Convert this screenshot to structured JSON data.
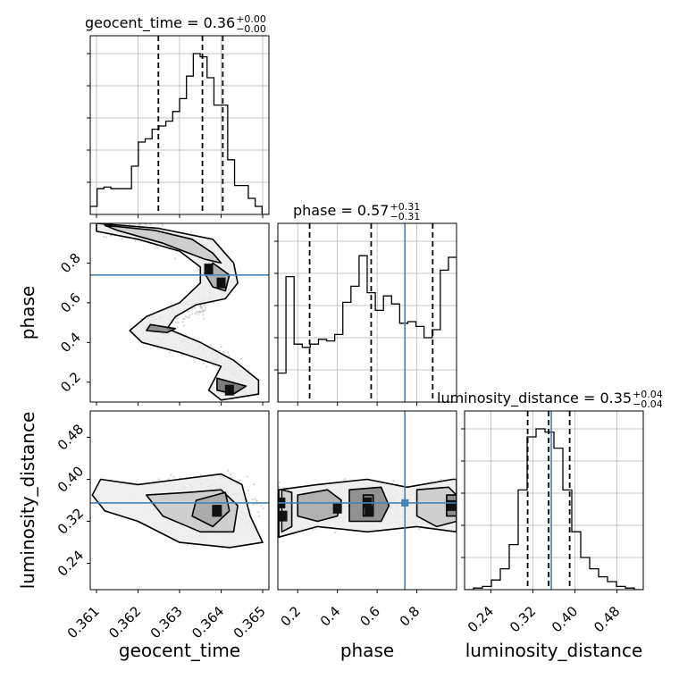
{
  "chart_data": {
    "type": "corner",
    "parameters": [
      "geocent_time",
      "phase",
      "luminosity_distance"
    ],
    "truths": {
      "geocent_time": null,
      "phase": 0.74,
      "luminosity_distance": 0.355
    },
    "colors": {
      "truth": "#4682b4",
      "hist": "#000000",
      "grid": "#b0b0b0",
      "sample": "#888888"
    },
    "grid": true,
    "diagonal": [
      {
        "param": "geocent_time",
        "title_main": "geocent_time = 0.36",
        "title_sup": "+0.00",
        "title_sub": "−0.00",
        "range": [
          0.36085,
          0.36515
        ],
        "xticks": [
          "0.361",
          "0.362",
          "0.363",
          "0.364",
          "0.365"
        ],
        "xtick_values": [
          0.361,
          0.362,
          0.363,
          0.364,
          0.365
        ],
        "quantiles": [
          0.36249,
          0.36355,
          0.36404
        ],
        "heights": [
          0.05,
          0.16,
          0.17,
          0.16,
          0.16,
          0.16,
          0.3,
          0.45,
          0.47,
          0.53,
          0.55,
          0.58,
          0.64,
          0.72,
          0.86,
          1.0,
          0.98,
          0.85,
          0.68,
          0.68,
          0.34,
          0.18,
          0.18,
          0.1,
          0.05,
          0.0
        ]
      },
      {
        "param": "phase",
        "title_main": "phase = 0.57",
        "title_sup": "+0.31",
        "title_sub": "−0.31",
        "range": [
          0.1,
          1.0
        ],
        "xticks": [
          "0.2",
          "0.4",
          "0.6",
          "0.8"
        ],
        "xtick_values": [
          0.2,
          0.4,
          0.6,
          0.8
        ],
        "quantiles": [
          0.26,
          0.57,
          0.88
        ],
        "heights": [
          0.18,
          0.78,
          0.36,
          0.34,
          0.36,
          0.39,
          0.38,
          0.42,
          0.62,
          0.72,
          0.91,
          0.68,
          0.57,
          0.66,
          0.61,
          0.49,
          0.5,
          0.47,
          0.4,
          0.45,
          0.82,
          0.9
        ]
      },
      {
        "param": "luminosity_distance",
        "title_main": "luminosity_distance = 0.35",
        "title_sup": "+0.04",
        "title_sub": "−0.04",
        "range": [
          0.19,
          0.53
        ],
        "xticks": [
          "0.24",
          "0.32",
          "0.40",
          "0.48"
        ],
        "xtick_values": [
          0.24,
          0.32,
          0.4,
          0.48
        ],
        "quantiles": [
          0.31,
          0.35,
          0.39
        ],
        "heights": [
          0.0,
          0.01,
          0.02,
          0.06,
          0.13,
          0.28,
          0.62,
          0.95,
          1.0,
          0.98,
          0.88,
          0.62,
          0.36,
          0.2,
          0.13,
          0.08,
          0.05,
          0.02,
          0.01,
          0.0
        ]
      }
    ],
    "off_diagonal": [
      {
        "x_param": "geocent_time",
        "y_param": "phase",
        "xrange": [
          0.36085,
          0.36515
        ],
        "yrange": [
          0.1,
          1.0
        ],
        "yticks": [
          "0.2",
          "0.4",
          "0.6",
          "0.8"
        ],
        "ytick_values": [
          0.2,
          0.4,
          0.6,
          0.8
        ],
        "ylabel": "phase",
        "density_path": [
          [
            0.3612,
            0.98
          ],
          [
            0.3625,
            0.94
          ],
          [
            0.3635,
            0.86
          ],
          [
            0.364,
            0.74
          ],
          [
            0.3635,
            0.58
          ],
          [
            0.3627,
            0.5
          ],
          [
            0.3622,
            0.47
          ],
          [
            0.363,
            0.4
          ],
          [
            0.3638,
            0.33
          ],
          [
            0.3643,
            0.25
          ],
          [
            0.3645,
            0.17
          ]
        ],
        "contours": [
          [
            [
              0.361,
              1.0
            ],
            [
              0.3625,
              0.975
            ],
            [
              0.3638,
              0.92
            ],
            [
              0.3643,
              0.8
            ],
            [
              0.3644,
              0.7
            ],
            [
              0.3641,
              0.62
            ],
            [
              0.3634,
              0.59
            ],
            [
              0.3629,
              0.53
            ],
            [
              0.3627,
              0.47
            ],
            [
              0.3635,
              0.4
            ],
            [
              0.3643,
              0.31
            ],
            [
              0.3649,
              0.21
            ],
            [
              0.3649,
              0.14
            ],
            [
              0.364,
              0.11
            ],
            [
              0.3637,
              0.16
            ],
            [
              0.364,
              0.28
            ],
            [
              0.363,
              0.35
            ],
            [
              0.3621,
              0.4
            ],
            [
              0.3618,
              0.46
            ],
            [
              0.3622,
              0.53
            ],
            [
              0.363,
              0.6
            ],
            [
              0.3635,
              0.7
            ],
            [
              0.3635,
              0.78
            ],
            [
              0.363,
              0.86
            ],
            [
              0.362,
              0.92
            ],
            [
              0.361,
              0.96
            ]
          ],
          [
            [
              0.3612,
              0.99
            ],
            [
              0.3624,
              0.965
            ],
            [
              0.3633,
              0.92
            ],
            [
              0.3638,
              0.85
            ],
            [
              0.364,
              0.8
            ],
            [
              0.3636,
              0.82
            ],
            [
              0.3626,
              0.9
            ],
            [
              0.3615,
              0.965
            ]
          ],
          [
            [
              0.3638,
              0.8
            ],
            [
              0.3642,
              0.74
            ],
            [
              0.3641,
              0.66
            ],
            [
              0.3638,
              0.68
            ],
            [
              0.3636,
              0.75
            ]
          ],
          [
            [
              0.3623,
              0.49
            ],
            [
              0.3629,
              0.47
            ],
            [
              0.3627,
              0.45
            ],
            [
              0.3622,
              0.46
            ]
          ],
          [
            [
              0.3639,
              0.22
            ],
            [
              0.3646,
              0.18
            ],
            [
              0.3643,
              0.14
            ],
            [
              0.3639,
              0.16
            ]
          ]
        ],
        "dark_spots": [
          [
            0.364,
            0.7
          ],
          [
            0.3642,
            0.16
          ],
          [
            0.3637,
            0.77
          ]
        ]
      },
      {
        "x_param": "geocent_time",
        "y_param": "luminosity_distance",
        "xrange": [
          0.36085,
          0.36515
        ],
        "yrange": [
          0.19,
          0.53
        ],
        "yticks": [
          "0.24",
          "0.32",
          "0.40",
          "0.48"
        ],
        "ytick_values": [
          0.24,
          0.32,
          0.4,
          0.48
        ],
        "ylabel": "luminosity_distance",
        "xlabel": "geocent_time",
        "xticks": [
          "0.361",
          "0.362",
          "0.363",
          "0.364",
          "0.365"
        ],
        "xtick_values": [
          0.361,
          0.362,
          0.363,
          0.364,
          0.365
        ],
        "density_center": [
          0.3636,
          0.35
        ],
        "contours": [
          [
            [
              0.3611,
              0.4
            ],
            [
              0.362,
              0.39
            ],
            [
              0.363,
              0.4
            ],
            [
              0.364,
              0.41
            ],
            [
              0.3645,
              0.39
            ],
            [
              0.3647,
              0.33
            ],
            [
              0.365,
              0.28
            ],
            [
              0.3642,
              0.27
            ],
            [
              0.363,
              0.28
            ],
            [
              0.362,
              0.32
            ],
            [
              0.3612,
              0.34
            ],
            [
              0.3609,
              0.37
            ]
          ],
          [
            [
              0.3622,
              0.37
            ],
            [
              0.3632,
              0.375
            ],
            [
              0.364,
              0.38
            ],
            [
              0.3644,
              0.35
            ],
            [
              0.3643,
              0.3
            ],
            [
              0.3635,
              0.3
            ],
            [
              0.3626,
              0.33
            ]
          ],
          [
            [
              0.3634,
              0.36
            ],
            [
              0.3641,
              0.375
            ],
            [
              0.3642,
              0.34
            ],
            [
              0.3638,
              0.31
            ],
            [
              0.3633,
              0.33
            ]
          ],
          [
            [
              0.3638,
              0.35
            ],
            [
              0.364,
              0.35
            ],
            [
              0.364,
              0.33
            ],
            [
              0.3638,
              0.33
            ]
          ]
        ],
        "dark_spots": [
          [
            0.3639,
            0.34
          ]
        ]
      },
      {
        "x_param": "phase",
        "y_param": "luminosity_distance",
        "xrange": [
          0.1,
          1.0
        ],
        "yrange": [
          0.19,
          0.53
        ],
        "xlabel": "phase",
        "xticks": [
          "0.2",
          "0.4",
          "0.6",
          "0.8"
        ],
        "xtick_values": [
          0.2,
          0.4,
          0.6,
          0.8
        ],
        "contours": [
          [
            [
              0.105,
              0.38
            ],
            [
              0.3,
              0.39
            ],
            [
              0.55,
              0.4
            ],
            [
              0.75,
              0.385
            ],
            [
              0.98,
              0.4
            ],
            [
              1.0,
              0.4
            ],
            [
              1.0,
              0.3
            ],
            [
              0.8,
              0.31
            ],
            [
              0.55,
              0.3
            ],
            [
              0.3,
              0.31
            ],
            [
              0.105,
              0.29
            ]
          ],
          [
            [
              0.12,
              0.38
            ],
            [
              0.17,
              0.375
            ],
            [
              0.17,
              0.31
            ],
            [
              0.12,
              0.3
            ]
          ],
          [
            [
              0.2,
              0.37
            ],
            [
              0.35,
              0.38
            ],
            [
              0.42,
              0.36
            ],
            [
              0.4,
              0.33
            ],
            [
              0.3,
              0.32
            ],
            [
              0.2,
              0.33
            ]
          ],
          [
            [
              0.46,
              0.38
            ],
            [
              0.62,
              0.385
            ],
            [
              0.66,
              0.35
            ],
            [
              0.62,
              0.32
            ],
            [
              0.46,
              0.32
            ]
          ],
          [
            [
              0.53,
              0.37
            ],
            [
              0.58,
              0.37
            ],
            [
              0.58,
              0.33
            ],
            [
              0.53,
              0.33
            ]
          ],
          [
            [
              0.8,
              0.38
            ],
            [
              0.96,
              0.385
            ],
            [
              1.0,
              0.37
            ],
            [
              1.0,
              0.32
            ],
            [
              0.9,
              0.31
            ],
            [
              0.8,
              0.33
            ]
          ],
          [
            [
              0.95,
              0.37
            ],
            [
              1.0,
              0.37
            ],
            [
              1.0,
              0.33
            ],
            [
              0.95,
              0.33
            ]
          ]
        ],
        "dark_spots": [
          [
            0.115,
            0.355
          ],
          [
            0.125,
            0.33
          ],
          [
            0.55,
            0.355
          ],
          [
            0.56,
            0.34
          ],
          [
            0.975,
            0.35
          ],
          [
            0.4,
            0.345
          ]
        ]
      }
    ]
  }
}
